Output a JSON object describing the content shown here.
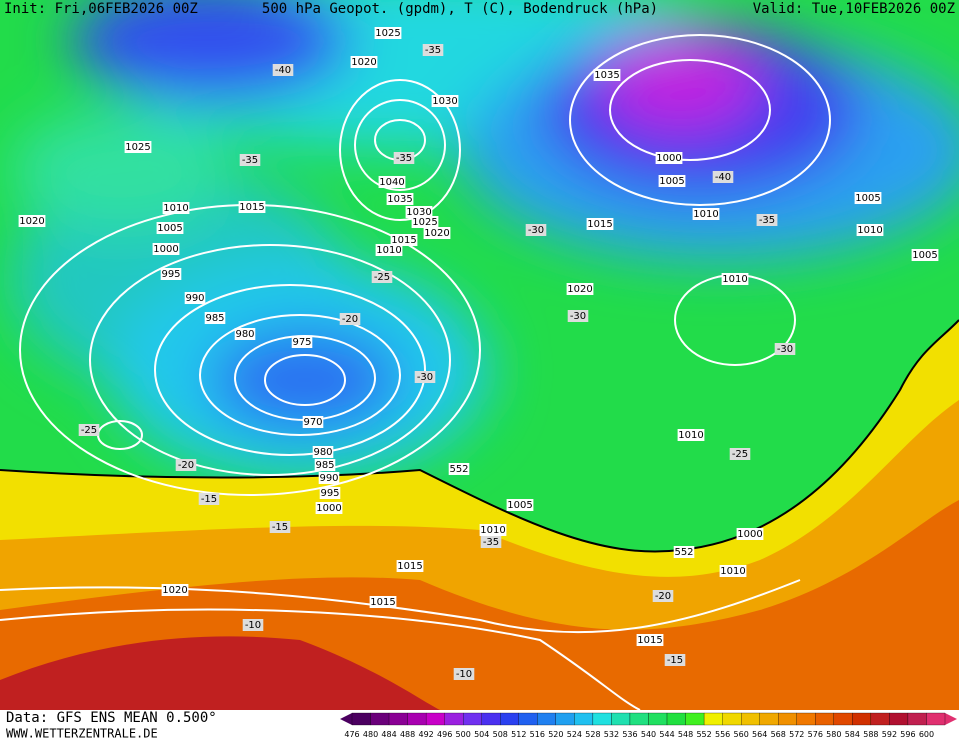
{
  "header": {
    "init": "Init: Fri,06FEB2026 00Z",
    "title": "500 hPa Geopot. (gpdm), T (C), Bodendruck (hPa)",
    "valid": "Valid: Tue,10FEB2026 00Z"
  },
  "footer": {
    "data": "Data: GFS ENS MEAN 0.500°",
    "site": "WWW.WETTERZENTRALE.DE"
  },
  "isobar_labels": [
    "1025",
    "1020",
    "1030",
    "1025",
    "1020",
    "1040",
    "1035",
    "1030",
    "1025",
    "1020",
    "1015",
    "1010",
    "1010",
    "1005",
    "1000",
    "995",
    "990",
    "985",
    "980",
    "975",
    "970",
    "980",
    "985",
    "990",
    "995",
    "1000",
    "1010",
    "1000",
    "1005",
    "1010",
    "1035",
    "1015",
    "1015",
    "1020",
    "1010",
    "1005",
    "1010",
    "1005",
    "1010",
    "1015",
    "1020",
    "1015",
    "1015",
    "1005",
    "1000",
    "1010"
  ],
  "temperature_labels": [
    "-40",
    "-35",
    "-35",
    "-35",
    "-35",
    "-30",
    "-25",
    "-20",
    "-30",
    "-25",
    "-20",
    "-15",
    "-15",
    "-35",
    "-30",
    "-40",
    "-35",
    "-30",
    "-25",
    "-20",
    "-15",
    "-10",
    "-10"
  ],
  "height_labels": [
    "552",
    "552"
  ],
  "colorbar": {
    "values": [
      476,
      480,
      484,
      488,
      492,
      496,
      500,
      504,
      508,
      512,
      516,
      520,
      524,
      528,
      532,
      536,
      540,
      544,
      548,
      552,
      556,
      560,
      564,
      568,
      572,
      576,
      580,
      584,
      588,
      592,
      596,
      600
    ],
    "colors": [
      "#4b0060",
      "#6a007a",
      "#8a0095",
      "#a800b0",
      "#c800c8",
      "#9a20e0",
      "#7030f0",
      "#4a30f0",
      "#2a40f0",
      "#2060f0",
      "#2080f0",
      "#20a0f0",
      "#20c0f0",
      "#20e0e0",
      "#20e0b0",
      "#20e080",
      "#20e060",
      "#20e040",
      "#40f020",
      "#f0f000",
      "#f0d800",
      "#f0c000",
      "#f0a800",
      "#f09000",
      "#f07800",
      "#e86000",
      "#e04800",
      "#d03000",
      "#c02020",
      "#b01030",
      "#c02050",
      "#e03070"
    ]
  }
}
